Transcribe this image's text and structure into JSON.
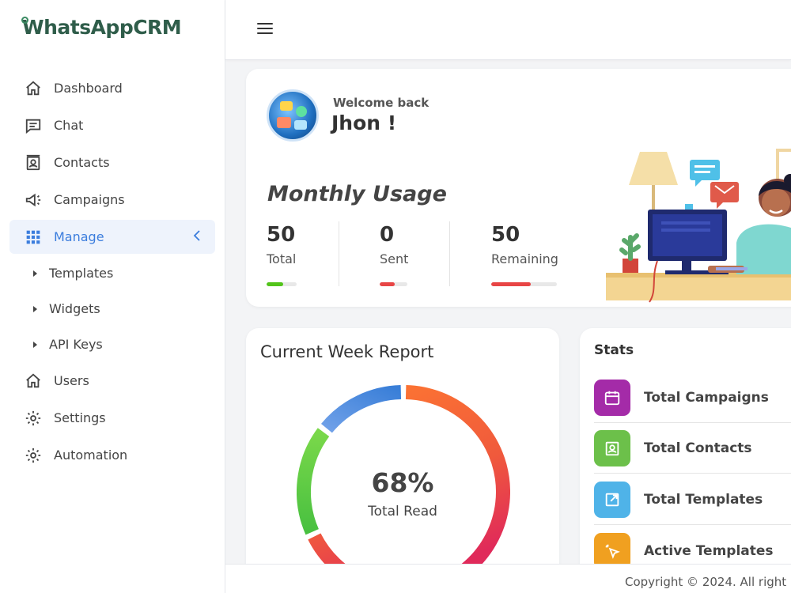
{
  "brand": {
    "name": "WhatsAppCRM"
  },
  "sidebar": {
    "items": [
      {
        "label": "Dashboard",
        "icon": "home-icon"
      },
      {
        "label": "Chat",
        "icon": "chat-icon"
      },
      {
        "label": "Contacts",
        "icon": "contacts-icon"
      },
      {
        "label": "Campaigns",
        "icon": "megaphone-icon"
      },
      {
        "label": "Manage",
        "icon": "grid-icon",
        "active": true,
        "accent": "#3b7ddd"
      },
      {
        "label": "Users",
        "icon": "home-icon"
      },
      {
        "label": "Settings",
        "icon": "gear-icon"
      },
      {
        "label": "Automation",
        "icon": "gear-icon"
      }
    ],
    "manage_sub": [
      {
        "label": "Templates"
      },
      {
        "label": "Widgets"
      },
      {
        "label": "API Keys"
      }
    ]
  },
  "welcome": {
    "greeting": "Welcome back",
    "name": "Jhon !"
  },
  "monthly_usage": {
    "title": "Monthly Usage",
    "stats": [
      {
        "value": "50",
        "label": "Total",
        "fill_fraction": 0.55,
        "color": "#52c41a"
      },
      {
        "value": "0",
        "label": "Sent",
        "fill_fraction": 0.55,
        "color": "#e84545"
      },
      {
        "value": "50",
        "label": "Remaining",
        "fill_fraction": 0.6,
        "color": "#e84545"
      }
    ]
  },
  "report": {
    "title": "Current Week Report",
    "value": "68%",
    "label": "Total Read",
    "read_fraction": 0.68
  },
  "stats": {
    "title": "Stats",
    "items": [
      {
        "label": "Total Campaigns",
        "icon": "calendar-icon",
        "color": "#a42ba8"
      },
      {
        "label": "Total Contacts",
        "icon": "contacts-icon",
        "color": "#6cc04a"
      },
      {
        "label": "Total Templates",
        "icon": "external-link-icon",
        "color": "#4fb3e8"
      },
      {
        "label": "Active Templates",
        "icon": "cursor-click-icon",
        "color": "#f0a020"
      }
    ]
  },
  "footer": {
    "copyright": "Copyright © 2024. All right"
  }
}
